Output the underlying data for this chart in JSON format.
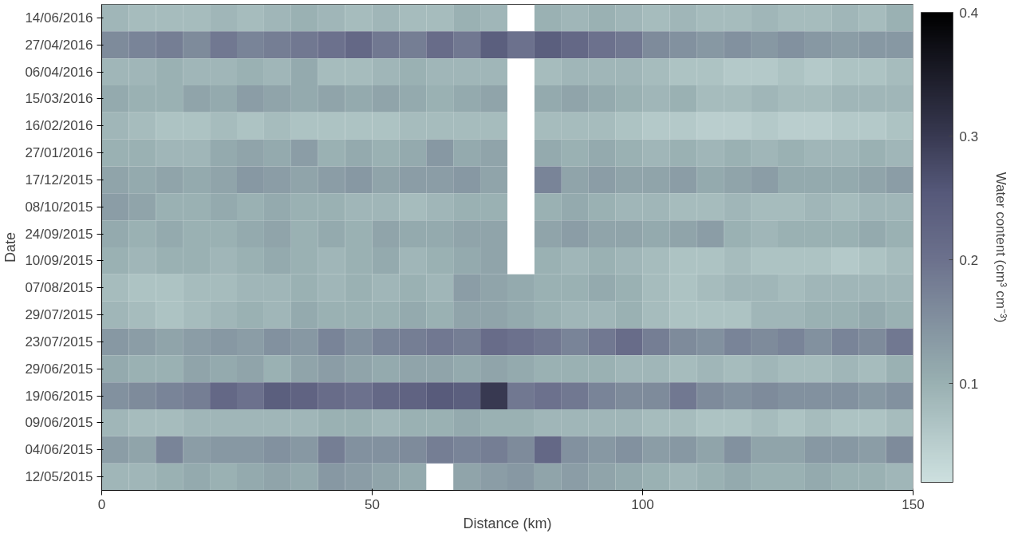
{
  "chart_data": {
    "type": "heatmap",
    "xlabel": "Distance (km)",
    "ylabel": "Date",
    "clabel": "Water content (cm³ cm⁻³)",
    "x": [
      2.5,
      7.5,
      12.5,
      17.5,
      22.5,
      27.5,
      32.5,
      37.5,
      42.5,
      47.5,
      52.5,
      57.5,
      62.5,
      67.5,
      72.5,
      77.5,
      82.5,
      87.5,
      92.5,
      97.5,
      102.5,
      107.5,
      112.5,
      117.5,
      122.5,
      127.5,
      132.5,
      137.5,
      142.5,
      147.5
    ],
    "xlim": [
      0,
      150
    ],
    "xticks": [
      0,
      50,
      100,
      150
    ],
    "y_categories": [
      "14/06/2016",
      "27/04/2016",
      "06/04/2016",
      "15/03/2016",
      "16/02/2016",
      "27/01/2016",
      "17/12/2015",
      "08/10/2015",
      "24/09/2015",
      "10/09/2015",
      "07/08/2015",
      "29/07/2015",
      "23/07/2015",
      "29/06/2015",
      "19/06/2015",
      "09/06/2015",
      "04/06/2015",
      "12/05/2015"
    ],
    "clim": [
      0.02,
      0.4
    ],
    "cticks": [
      0.1,
      0.2,
      0.3,
      0.4
    ],
    "cells": [
      [
        0.09,
        0.08,
        0.08,
        0.08,
        0.09,
        0.08,
        0.09,
        0.1,
        0.09,
        0.08,
        0.09,
        0.08,
        0.08,
        0.1,
        0.09,
        null,
        0.1,
        0.09,
        0.1,
        0.09,
        0.08,
        0.09,
        0.08,
        0.08,
        0.09,
        0.08,
        0.08,
        0.09,
        0.08,
        0.1
      ],
      [
        0.16,
        0.17,
        0.18,
        0.16,
        0.19,
        0.17,
        0.18,
        0.19,
        0.2,
        0.22,
        0.19,
        0.18,
        0.21,
        0.19,
        0.24,
        0.2,
        0.24,
        0.22,
        0.2,
        0.19,
        0.16,
        0.15,
        0.14,
        0.15,
        0.14,
        0.15,
        0.14,
        0.13,
        0.14,
        0.14
      ],
      [
        0.09,
        0.09,
        0.1,
        0.09,
        0.09,
        0.1,
        0.09,
        0.11,
        0.08,
        0.08,
        0.09,
        0.1,
        0.09,
        0.09,
        0.09,
        null,
        0.08,
        0.09,
        0.09,
        0.09,
        0.08,
        0.07,
        0.07,
        0.06,
        0.06,
        0.07,
        0.06,
        0.07,
        0.07,
        0.08
      ],
      [
        0.11,
        0.1,
        0.1,
        0.12,
        0.11,
        0.13,
        0.12,
        0.11,
        0.12,
        0.11,
        0.12,
        0.11,
        0.1,
        0.11,
        0.12,
        null,
        0.11,
        0.12,
        0.11,
        0.1,
        0.09,
        0.1,
        0.08,
        0.08,
        0.09,
        0.08,
        0.08,
        0.09,
        0.09,
        0.09
      ],
      [
        0.09,
        0.08,
        0.07,
        0.07,
        0.08,
        0.07,
        0.08,
        0.07,
        0.07,
        0.07,
        0.07,
        0.08,
        0.08,
        0.08,
        0.08,
        null,
        0.08,
        0.08,
        0.08,
        0.07,
        0.06,
        0.06,
        0.05,
        0.05,
        0.06,
        0.05,
        0.05,
        0.06,
        0.06,
        0.07
      ],
      [
        0.1,
        0.1,
        0.09,
        0.09,
        0.11,
        0.12,
        0.11,
        0.13,
        0.1,
        0.11,
        0.1,
        0.11,
        0.14,
        0.11,
        0.12,
        null,
        0.11,
        0.1,
        0.11,
        0.1,
        0.09,
        0.1,
        0.09,
        0.1,
        0.09,
        0.1,
        0.09,
        0.09,
        0.1,
        0.09
      ],
      [
        0.12,
        0.11,
        0.12,
        0.11,
        0.12,
        0.14,
        0.13,
        0.12,
        0.13,
        0.14,
        0.12,
        0.13,
        0.13,
        0.14,
        0.12,
        null,
        0.17,
        0.12,
        0.13,
        0.12,
        0.12,
        0.13,
        0.11,
        0.12,
        0.13,
        0.11,
        0.11,
        0.11,
        0.12,
        0.13
      ],
      [
        0.13,
        0.12,
        0.1,
        0.1,
        0.11,
        0.1,
        0.11,
        0.1,
        0.1,
        0.09,
        0.09,
        0.08,
        0.09,
        0.1,
        0.1,
        null,
        0.1,
        0.11,
        0.1,
        0.09,
        0.09,
        0.08,
        0.08,
        0.09,
        0.08,
        0.08,
        0.09,
        0.08,
        0.09,
        0.09
      ],
      [
        0.11,
        0.1,
        0.11,
        0.1,
        0.1,
        0.11,
        0.12,
        0.1,
        0.11,
        0.1,
        0.12,
        0.11,
        0.11,
        0.12,
        0.12,
        null,
        0.12,
        0.13,
        0.12,
        0.12,
        0.11,
        0.12,
        0.13,
        0.1,
        0.09,
        0.1,
        0.1,
        0.1,
        0.11,
        0.1
      ],
      [
        0.1,
        0.09,
        0.1,
        0.1,
        0.09,
        0.1,
        0.11,
        0.1,
        0.09,
        0.1,
        0.11,
        0.09,
        0.1,
        0.11,
        0.12,
        null,
        0.1,
        0.09,
        0.1,
        0.09,
        0.08,
        0.07,
        0.07,
        0.08,
        0.07,
        0.07,
        0.07,
        0.06,
        0.07,
        0.08
      ],
      [
        0.08,
        0.07,
        0.07,
        0.08,
        0.08,
        0.09,
        0.09,
        0.1,
        0.09,
        0.1,
        0.09,
        0.1,
        0.09,
        0.13,
        0.12,
        0.11,
        0.1,
        0.1,
        0.11,
        0.1,
        0.08,
        0.07,
        0.08,
        0.09,
        0.09,
        0.08,
        0.09,
        0.09,
        0.09,
        0.09
      ],
      [
        0.09,
        0.08,
        0.07,
        0.08,
        0.09,
        0.1,
        0.09,
        0.11,
        0.1,
        0.1,
        0.1,
        0.11,
        0.1,
        0.12,
        0.12,
        0.11,
        0.1,
        0.09,
        0.09,
        0.1,
        0.08,
        0.07,
        0.07,
        0.07,
        0.09,
        0.09,
        0.1,
        0.1,
        0.11,
        0.1
      ],
      [
        0.14,
        0.13,
        0.12,
        0.13,
        0.14,
        0.13,
        0.15,
        0.14,
        0.17,
        0.15,
        0.17,
        0.18,
        0.19,
        0.18,
        0.21,
        0.2,
        0.19,
        0.17,
        0.19,
        0.21,
        0.18,
        0.16,
        0.15,
        0.17,
        0.16,
        0.17,
        0.15,
        0.17,
        0.16,
        0.19
      ],
      [
        0.11,
        0.1,
        0.1,
        0.12,
        0.11,
        0.12,
        0.1,
        0.12,
        0.13,
        0.12,
        0.11,
        0.12,
        0.12,
        0.11,
        0.12,
        0.11,
        0.1,
        0.1,
        0.1,
        0.09,
        0.09,
        0.08,
        0.09,
        0.08,
        0.09,
        0.08,
        0.08,
        0.09,
        0.08,
        0.1
      ],
      [
        0.15,
        0.16,
        0.17,
        0.18,
        0.22,
        0.2,
        0.24,
        0.23,
        0.21,
        0.2,
        0.22,
        0.23,
        0.25,
        0.24,
        0.3,
        0.19,
        0.2,
        0.19,
        0.17,
        0.16,
        0.16,
        0.19,
        0.16,
        0.15,
        0.16,
        0.15,
        0.15,
        0.15,
        0.14,
        0.15
      ],
      [
        0.09,
        0.08,
        0.08,
        0.09,
        0.09,
        0.09,
        0.09,
        0.09,
        0.1,
        0.1,
        0.09,
        0.1,
        0.1,
        0.11,
        0.1,
        0.1,
        0.09,
        0.09,
        0.09,
        0.09,
        0.08,
        0.08,
        0.07,
        0.07,
        0.08,
        0.07,
        0.08,
        0.07,
        0.07,
        0.08
      ],
      [
        0.13,
        0.12,
        0.17,
        0.13,
        0.14,
        0.14,
        0.15,
        0.14,
        0.18,
        0.15,
        0.15,
        0.16,
        0.18,
        0.17,
        0.18,
        0.16,
        0.22,
        0.15,
        0.14,
        0.15,
        0.13,
        0.14,
        0.12,
        0.15,
        0.12,
        0.12,
        0.14,
        0.14,
        0.13,
        0.16
      ],
      [
        0.09,
        0.09,
        0.1,
        0.11,
        0.1,
        0.11,
        0.12,
        0.11,
        0.14,
        0.13,
        0.12,
        0.11,
        null,
        0.12,
        0.13,
        0.14,
        0.12,
        0.13,
        0.12,
        0.11,
        0.1,
        0.09,
        0.1,
        0.11,
        0.1,
        0.1,
        0.11,
        0.1,
        0.1,
        0.09
      ]
    ]
  }
}
